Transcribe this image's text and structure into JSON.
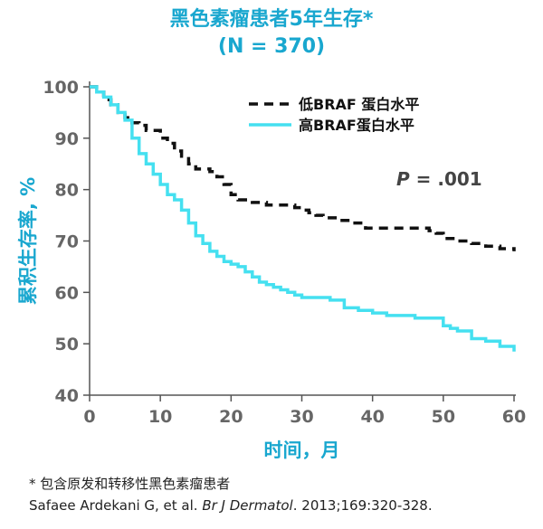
{
  "colors": {
    "accent": "#19a7cf",
    "low_series": "#111111",
    "high_series": "#45e0f0",
    "axis": "#555555",
    "tick_text": "#666666"
  },
  "chart_data": {
    "type": "line",
    "title": "黑色素瘤患者5年生存*",
    "subtitle": "(N = 370)",
    "xlabel": "时间，月",
    "ylabel": "累积生存率, %",
    "xlim": [
      0,
      60
    ],
    "ylim": [
      40,
      100
    ],
    "xticks": [
      0,
      10,
      20,
      30,
      40,
      50,
      60
    ],
    "yticks": [
      40,
      50,
      60,
      70,
      80,
      90,
      100
    ],
    "grid": false,
    "legend_position": "top-right",
    "annotation": {
      "label": "P",
      "text": " = .001"
    },
    "series": [
      {
        "name": "低BRAF 蛋白水平",
        "style": "dashed",
        "x": [
          0,
          1,
          2,
          3,
          4,
          5,
          6,
          7,
          8,
          10,
          11,
          12,
          13,
          14,
          15,
          16,
          17,
          18,
          19,
          20,
          21,
          23,
          25,
          27,
          29,
          30,
          31,
          32,
          33,
          35,
          37,
          38.5,
          39,
          40,
          42,
          45,
          48,
          49,
          50,
          52,
          54,
          56,
          58,
          60
        ],
        "y": [
          100,
          99,
          97.5,
          96.5,
          95,
          94,
          93,
          92.5,
          91.5,
          90,
          89,
          87.5,
          86.5,
          85,
          84,
          84,
          83.5,
          82.5,
          81,
          79,
          78,
          77.5,
          77,
          77,
          76.5,
          76,
          75.5,
          75,
          74.5,
          74,
          73.5,
          73.5,
          72.5,
          72.5,
          72.5,
          72.5,
          72,
          71.5,
          70.5,
          70,
          69.5,
          69,
          68.5,
          68
        ]
      },
      {
        "name": "高BRAF蛋白水平",
        "style": "solid",
        "x": [
          0,
          1,
          2,
          3,
          4,
          5,
          6,
          7,
          8,
          9,
          10,
          11,
          12,
          13,
          14,
          15,
          16,
          17,
          18,
          19,
          20,
          21,
          22,
          23,
          24,
          25,
          26,
          27,
          28,
          29,
          30,
          32,
          34,
          36,
          38,
          40,
          42,
          44,
          46,
          48,
          50,
          51,
          52,
          54,
          56,
          58,
          60
        ],
        "y": [
          100,
          99,
          98,
          96.5,
          95,
          93.5,
          90,
          87,
          85,
          83,
          81,
          79,
          78,
          76,
          73.5,
          71,
          69.5,
          68,
          67,
          66,
          65.5,
          65,
          64,
          63,
          62,
          61.5,
          61,
          60.5,
          60,
          59.5,
          59,
          59,
          58.5,
          57,
          56.5,
          56,
          55.5,
          55.5,
          55,
          55,
          53.5,
          53,
          52.5,
          51,
          50.5,
          49.5,
          48.5
        ]
      }
    ]
  },
  "footnotes": {
    "line1": "* 包含原发和转移性黑色素瘤患者",
    "citation_authors": "Safaee Ardekani G, et al. ",
    "citation_journal": "Br J Dermatol",
    "citation_rest": ". 2013;169:320-328."
  }
}
